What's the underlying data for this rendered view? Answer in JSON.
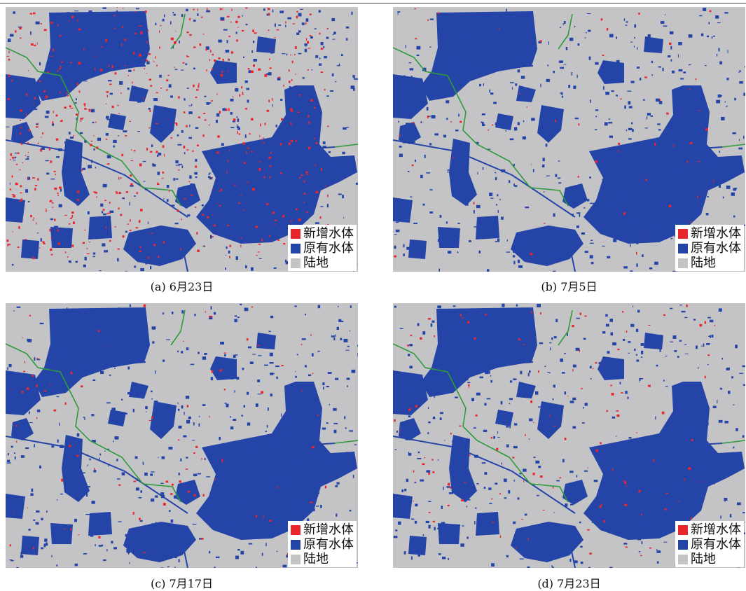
{
  "legend": {
    "items": [
      {
        "label": "新增水体",
        "color": "#e8262b"
      },
      {
        "label": "原有水体",
        "color": "#2444a8"
      },
      {
        "label": "陆地",
        "color": "#c4c4c6"
      }
    ]
  },
  "panels": [
    {
      "caption": "(a) 6月23日"
    },
    {
      "caption": "(b) 7月5日"
    },
    {
      "caption": "(c) 7月17日"
    },
    {
      "caption": "(d) 7月23日"
    }
  ],
  "colors": {
    "water": "#2444a8",
    "new_water": "#e8262b",
    "land": "#c4c4c6",
    "river": "#2e9a3a"
  }
}
